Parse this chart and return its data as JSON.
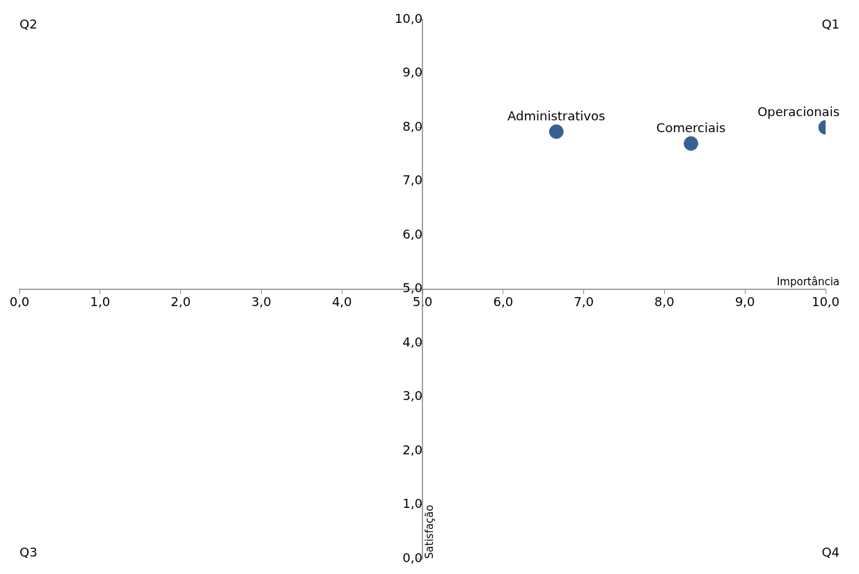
{
  "chart_data": {
    "type": "scatter",
    "xlabel": "Importância",
    "ylabel": "Satisfação",
    "series": [
      {
        "name": "Administrativos",
        "color": "#376092",
        "x": [
          6.66
        ],
        "values": [
          7.92
        ]
      },
      {
        "name": "Comerciais",
        "color": "#376092",
        "x": [
          8.33
        ],
        "values": [
          7.7
        ]
      },
      {
        "name": "Operacionais",
        "color": "#376092",
        "x": [
          10.0
        ],
        "values": [
          8.0
        ]
      }
    ],
    "xlim": [
      0,
      10
    ],
    "ylim": [
      0,
      10
    ],
    "xticks": [
      {
        "value": 0,
        "label": "0,0"
      },
      {
        "value": 1,
        "label": "1,0"
      },
      {
        "value": 2,
        "label": "2,0"
      },
      {
        "value": 3,
        "label": "3,0"
      },
      {
        "value": 4,
        "label": "4,0"
      },
      {
        "value": 5,
        "label": "5,0"
      },
      {
        "value": 6,
        "label": "6,0"
      },
      {
        "value": 7,
        "label": "7,0"
      },
      {
        "value": 8,
        "label": "8,0"
      },
      {
        "value": 9,
        "label": "9,0"
      },
      {
        "value": 10,
        "label": "10,0"
      }
    ],
    "yticks": [
      {
        "value": 0,
        "label": "0,0"
      },
      {
        "value": 1,
        "label": "1,0"
      },
      {
        "value": 2,
        "label": "2,0"
      },
      {
        "value": 3,
        "label": "3,0"
      },
      {
        "value": 4,
        "label": "4,0"
      },
      {
        "value": 5,
        "label": "5,0"
      },
      {
        "value": 6,
        "label": "6,0"
      },
      {
        "value": 7,
        "label": "7,0"
      },
      {
        "value": 8,
        "label": "8,0"
      },
      {
        "value": 9,
        "label": "9,0"
      },
      {
        "value": 10,
        "label": "10,0"
      }
    ],
    "annotations": [
      "Q1",
      "Q2",
      "Q3",
      "Q4"
    ],
    "grid": false,
    "legend": false,
    "marker": "circle"
  }
}
